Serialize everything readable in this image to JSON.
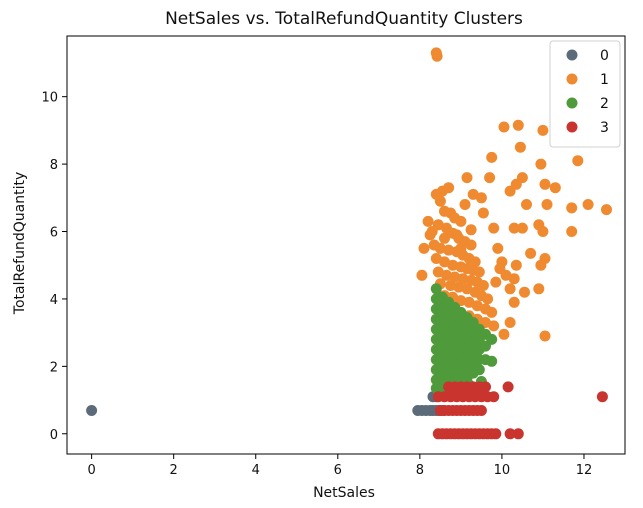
{
  "chart_data": {
    "type": "scatter",
    "title": "NetSales vs. TotalRefundQuantity Clusters",
    "xlabel": "NetSales",
    "ylabel": "TotalRefundQuantity",
    "xlim": [
      -0.6,
      13.0
    ],
    "ylim": [
      -0.6,
      11.8
    ],
    "xticks": [
      0,
      2,
      4,
      6,
      8,
      10,
      12
    ],
    "yticks": [
      0,
      2,
      4,
      6,
      8,
      10
    ],
    "grid": false,
    "legend_position": "top-right",
    "series": [
      {
        "name": "0",
        "color": "#5c6b7a",
        "points": [
          [
            0.0,
            0.69
          ],
          [
            7.95,
            0.69
          ],
          [
            8.05,
            0.69
          ],
          [
            8.15,
            0.69
          ],
          [
            8.25,
            0.69
          ],
          [
            8.32,
            0.69
          ],
          [
            8.4,
            0.69
          ],
          [
            8.47,
            0.69
          ],
          [
            8.55,
            0.69
          ],
          [
            8.32,
            1.1
          ],
          [
            8.4,
            1.1
          ]
        ]
      },
      {
        "name": "1",
        "color": "#f08a30",
        "points": [
          [
            8.4,
            11.3
          ],
          [
            8.42,
            11.2
          ],
          [
            8.4,
            7.1
          ],
          [
            8.55,
            7.2
          ],
          [
            8.7,
            7.3
          ],
          [
            8.5,
            6.9
          ],
          [
            8.6,
            6.6
          ],
          [
            8.75,
            6.55
          ],
          [
            8.85,
            6.4
          ],
          [
            9.0,
            6.3
          ],
          [
            8.3,
            6.0
          ],
          [
            8.45,
            6.2
          ],
          [
            8.65,
            6.1
          ],
          [
            8.8,
            5.95
          ],
          [
            8.95,
            5.8
          ],
          [
            9.1,
            5.7
          ],
          [
            9.25,
            5.6
          ],
          [
            8.35,
            5.6
          ],
          [
            8.5,
            5.5
          ],
          [
            8.7,
            5.45
          ],
          [
            8.9,
            5.4
          ],
          [
            9.05,
            5.3
          ],
          [
            9.2,
            5.2
          ],
          [
            9.35,
            5.1
          ],
          [
            8.4,
            5.2
          ],
          [
            8.6,
            5.1
          ],
          [
            8.8,
            5.0
          ],
          [
            9.0,
            4.95
          ],
          [
            9.15,
            4.9
          ],
          [
            9.3,
            4.85
          ],
          [
            9.45,
            4.8
          ],
          [
            8.45,
            4.8
          ],
          [
            8.65,
            4.7
          ],
          [
            8.85,
            4.65
          ],
          [
            9.05,
            4.6
          ],
          [
            9.25,
            4.55
          ],
          [
            9.4,
            4.5
          ],
          [
            9.55,
            4.4
          ],
          [
            8.5,
            4.45
          ],
          [
            8.75,
            4.4
          ],
          [
            8.95,
            4.35
          ],
          [
            9.15,
            4.3
          ],
          [
            9.35,
            4.2
          ],
          [
            9.5,
            4.1
          ],
          [
            9.65,
            4.0
          ],
          [
            8.6,
            4.1
          ],
          [
            8.8,
            4.05
          ],
          [
            9.0,
            3.95
          ],
          [
            9.2,
            3.9
          ],
          [
            9.4,
            3.8
          ],
          [
            9.6,
            3.7
          ],
          [
            9.75,
            3.6
          ],
          [
            9.2,
            3.5
          ],
          [
            9.4,
            3.4
          ],
          [
            9.6,
            3.3
          ],
          [
            9.8,
            3.2
          ],
          [
            8.1,
            5.5
          ],
          [
            8.05,
            4.7
          ],
          [
            8.25,
            5.9
          ],
          [
            8.2,
            6.3
          ],
          [
            8.6,
            5.8
          ],
          [
            8.9,
            5.9
          ],
          [
            9.0,
            5.5
          ],
          [
            9.1,
            6.8
          ],
          [
            9.15,
            7.6
          ],
          [
            9.3,
            7.1
          ],
          [
            9.5,
            7.0
          ],
          [
            9.7,
            7.6
          ],
          [
            9.75,
            8.2
          ],
          [
            9.8,
            6.1
          ],
          [
            9.9,
            5.5
          ],
          [
            10.0,
            5.1
          ],
          [
            10.1,
            4.7
          ],
          [
            10.2,
            4.3
          ],
          [
            10.3,
            3.9
          ],
          [
            9.95,
            4.9
          ],
          [
            9.85,
            4.5
          ],
          [
            10.05,
            9.1
          ],
          [
            10.4,
            9.15
          ],
          [
            10.45,
            8.5
          ],
          [
            10.5,
            7.6
          ],
          [
            10.35,
            7.4
          ],
          [
            10.2,
            7.2
          ],
          [
            10.6,
            6.8
          ],
          [
            10.3,
            6.1
          ],
          [
            10.5,
            6.1
          ],
          [
            10.7,
            5.35
          ],
          [
            10.35,
            5.0
          ],
          [
            10.3,
            4.6
          ],
          [
            10.55,
            4.2
          ],
          [
            10.2,
            3.3
          ],
          [
            10.05,
            2.95
          ],
          [
            10.95,
            8.0
          ],
          [
            11.05,
            7.4
          ],
          [
            11.0,
            9.0
          ],
          [
            11.1,
            6.8
          ],
          [
            11.0,
            6.0
          ],
          [
            10.9,
            6.2
          ],
          [
            11.05,
            5.2
          ],
          [
            10.95,
            5.0
          ],
          [
            10.9,
            4.3
          ],
          [
            11.05,
            2.9
          ],
          [
            11.3,
            7.3
          ],
          [
            11.7,
            6.7
          ],
          [
            11.85,
            8.1
          ],
          [
            11.7,
            6.0
          ],
          [
            12.1,
            6.8
          ],
          [
            12.55,
            6.65
          ],
          [
            9.25,
            6.05
          ],
          [
            9.55,
            6.55
          ]
        ]
      },
      {
        "name": "2",
        "color": "#4f9a3a",
        "points": [
          [
            8.4,
            4.3
          ],
          [
            8.4,
            4.0
          ],
          [
            8.4,
            3.7
          ],
          [
            8.4,
            3.4
          ],
          [
            8.4,
            3.1
          ],
          [
            8.4,
            2.8
          ],
          [
            8.4,
            2.5
          ],
          [
            8.4,
            2.2
          ],
          [
            8.4,
            1.9
          ],
          [
            8.4,
            1.6
          ],
          [
            8.4,
            1.35
          ],
          [
            8.55,
            4.05
          ],
          [
            8.55,
            3.75
          ],
          [
            8.55,
            3.45
          ],
          [
            8.55,
            3.15
          ],
          [
            8.55,
            2.85
          ],
          [
            8.55,
            2.55
          ],
          [
            8.55,
            2.25
          ],
          [
            8.55,
            1.95
          ],
          [
            8.55,
            1.65
          ],
          [
            8.55,
            1.35
          ],
          [
            8.7,
            3.9
          ],
          [
            8.7,
            3.6
          ],
          [
            8.7,
            3.3
          ],
          [
            8.7,
            3.0
          ],
          [
            8.7,
            2.7
          ],
          [
            8.7,
            2.4
          ],
          [
            8.7,
            2.1
          ],
          [
            8.7,
            1.8
          ],
          [
            8.7,
            1.5
          ],
          [
            8.85,
            3.75
          ],
          [
            8.85,
            3.45
          ],
          [
            8.85,
            3.15
          ],
          [
            8.85,
            2.85
          ],
          [
            8.85,
            2.55
          ],
          [
            8.85,
            2.25
          ],
          [
            8.85,
            1.95
          ],
          [
            8.85,
            1.65
          ],
          [
            8.85,
            1.35
          ],
          [
            9.0,
            3.6
          ],
          [
            9.0,
            3.3
          ],
          [
            9.0,
            3.0
          ],
          [
            9.0,
            2.7
          ],
          [
            9.0,
            2.4
          ],
          [
            9.0,
            2.1
          ],
          [
            9.0,
            1.8
          ],
          [
            9.0,
            1.5
          ],
          [
            9.15,
            3.45
          ],
          [
            9.15,
            3.15
          ],
          [
            9.15,
            2.85
          ],
          [
            9.15,
            2.55
          ],
          [
            9.15,
            2.25
          ],
          [
            9.15,
            1.95
          ],
          [
            9.15,
            1.65
          ],
          [
            9.3,
            3.3
          ],
          [
            9.3,
            3.0
          ],
          [
            9.3,
            2.7
          ],
          [
            9.3,
            2.4
          ],
          [
            9.3,
            2.1
          ],
          [
            9.3,
            1.8
          ],
          [
            9.45,
            3.1
          ],
          [
            9.45,
            2.8
          ],
          [
            9.45,
            2.5
          ],
          [
            9.45,
            2.2
          ],
          [
            9.45,
            1.9
          ],
          [
            9.6,
            2.95
          ],
          [
            9.6,
            2.6
          ],
          [
            9.6,
            2.2
          ],
          [
            9.75,
            2.8
          ],
          [
            9.75,
            2.15
          ],
          [
            9.5,
            1.55
          ],
          [
            9.2,
            1.45
          ]
        ]
      },
      {
        "name": "3",
        "color": "#c9352e",
        "points": [
          [
            8.45,
            0.0
          ],
          [
            8.55,
            0.0
          ],
          [
            8.65,
            0.0
          ],
          [
            8.75,
            0.0
          ],
          [
            8.85,
            0.0
          ],
          [
            8.95,
            0.0
          ],
          [
            9.05,
            0.0
          ],
          [
            9.15,
            0.0
          ],
          [
            9.25,
            0.0
          ],
          [
            9.35,
            0.0
          ],
          [
            9.45,
            0.0
          ],
          [
            9.55,
            0.0
          ],
          [
            9.65,
            0.0
          ],
          [
            9.75,
            0.0
          ],
          [
            9.85,
            0.0
          ],
          [
            10.2,
            0.0
          ],
          [
            10.4,
            0.0
          ],
          [
            8.5,
            0.69
          ],
          [
            8.6,
            0.69
          ],
          [
            8.7,
            0.69
          ],
          [
            8.8,
            0.69
          ],
          [
            8.9,
            0.69
          ],
          [
            9.0,
            0.69
          ],
          [
            9.1,
            0.69
          ],
          [
            9.2,
            0.69
          ],
          [
            9.3,
            0.69
          ],
          [
            9.4,
            0.69
          ],
          [
            9.5,
            0.69
          ],
          [
            8.45,
            1.1
          ],
          [
            8.6,
            1.1
          ],
          [
            8.75,
            1.1
          ],
          [
            8.9,
            1.1
          ],
          [
            9.05,
            1.1
          ],
          [
            9.2,
            1.1
          ],
          [
            9.35,
            1.1
          ],
          [
            9.5,
            1.1
          ],
          [
            9.65,
            1.1
          ],
          [
            9.8,
            1.1
          ],
          [
            8.7,
            1.39
          ],
          [
            8.85,
            1.39
          ],
          [
            9.0,
            1.39
          ],
          [
            9.15,
            1.39
          ],
          [
            9.3,
            1.39
          ],
          [
            9.45,
            1.39
          ],
          [
            9.6,
            1.39
          ],
          [
            10.15,
            1.39
          ],
          [
            12.45,
            1.1
          ]
        ]
      }
    ]
  }
}
